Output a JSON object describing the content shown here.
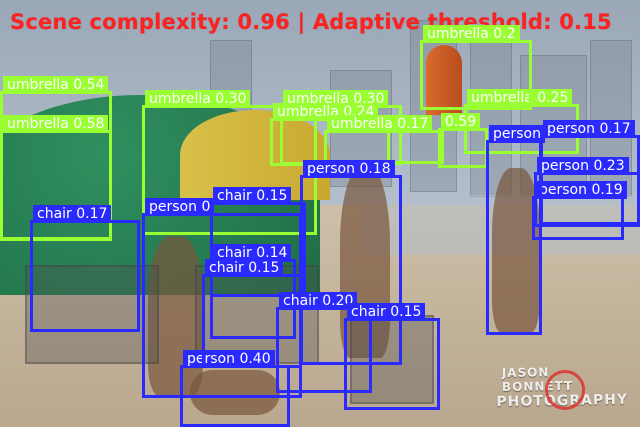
{
  "overlay": {
    "title": "Scene complexity: 0.96 | Adaptive threshold: 0.15"
  },
  "colors": {
    "title_red": "#ff2020",
    "umbrella_box": "#99ff33",
    "person_box": "#2a2aff",
    "chair_box": "#2a2aff"
  },
  "detections": {
    "umbrellas": [
      {
        "label": "umbrella 0.54"
      },
      {
        "label": "umbrella 0.58"
      },
      {
        "label": "umbrella 0.30"
      },
      {
        "label": "umbrella 0.30"
      },
      {
        "label": "umbrella 0.24"
      },
      {
        "label": "umbrella 0.17"
      },
      {
        "label": "umbrella 0.25"
      },
      {
        "label": "umbrella 0.2"
      },
      {
        "label": "0.59"
      }
    ],
    "persons": [
      {
        "label": "person 0.17"
      },
      {
        "label": "person 0.23"
      },
      {
        "label": "person 0.19"
      },
      {
        "label": "person 0.18"
      },
      {
        "label": "person 0"
      },
      {
        "label": "person 0.40"
      },
      {
        "label": "person"
      }
    ],
    "chairs": [
      {
        "label": "chair 0.17"
      },
      {
        "label": "chair 0.15"
      },
      {
        "label": "chair 0.14"
      },
      {
        "label": "chair 0.15"
      },
      {
        "label": "chair 0.20"
      },
      {
        "label": "chair 0.15"
      }
    ]
  },
  "watermark": {
    "line1": "JASON BONNETT",
    "line2": "PHOTOGRAPHY"
  }
}
